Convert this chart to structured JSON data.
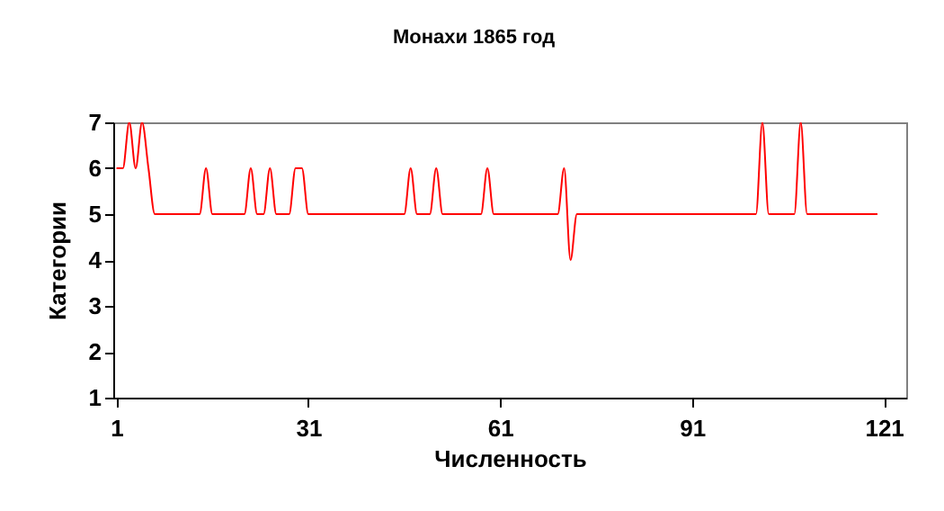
{
  "chart_data": {
    "type": "line",
    "title": "Монахи 1865 год",
    "xlabel": "Численность",
    "ylabel": "Категории",
    "x": [
      1,
      2,
      3,
      4,
      5,
      6,
      7,
      8,
      9,
      10,
      11,
      12,
      13,
      14,
      15,
      16,
      17,
      18,
      19,
      20,
      21,
      22,
      23,
      24,
      25,
      26,
      27,
      28,
      29,
      30,
      31,
      32,
      33,
      34,
      35,
      36,
      37,
      38,
      39,
      40,
      41,
      42,
      43,
      44,
      45,
      46,
      47,
      48,
      49,
      50,
      51,
      52,
      53,
      54,
      55,
      56,
      57,
      58,
      59,
      60,
      61,
      62,
      63,
      64,
      65,
      66,
      67,
      68,
      69,
      70,
      71,
      72,
      73,
      74,
      75,
      76,
      77,
      78,
      79,
      80,
      81,
      82,
      83,
      84,
      85,
      86,
      87,
      88,
      89,
      90,
      91,
      92,
      93,
      94,
      95,
      96,
      97,
      98,
      99,
      100,
      101,
      102,
      103,
      104,
      105,
      106,
      107,
      108,
      109,
      110,
      111,
      112,
      113,
      114,
      115,
      116,
      117,
      118,
      119,
      120
    ],
    "series": [
      {
        "color": "#ff0000",
        "values": [
          6,
          6,
          7,
          6,
          7,
          6,
          5,
          5,
          5,
          5,
          5,
          5,
          5,
          5,
          6,
          5,
          5,
          5,
          5,
          5,
          5,
          6,
          5,
          5,
          6,
          5,
          5,
          5,
          6,
          6,
          5,
          5,
          5,
          5,
          5,
          5,
          5,
          5,
          5,
          5,
          5,
          5,
          5,
          5,
          5,
          5,
          6,
          5,
          5,
          5,
          6,
          5,
          5,
          5,
          5,
          5,
          5,
          5,
          6,
          5,
          5,
          5,
          5,
          5,
          5,
          5,
          5,
          5,
          5,
          5,
          6,
          4,
          5,
          5,
          5,
          5,
          5,
          5,
          5,
          5,
          5,
          5,
          5,
          5,
          5,
          5,
          5,
          5,
          5,
          5,
          5,
          5,
          5,
          5,
          5,
          5,
          5,
          5,
          5,
          5,
          5,
          7,
          5,
          5,
          5,
          5,
          5,
          7,
          5,
          5,
          5,
          5,
          5,
          5,
          5,
          5,
          5,
          5,
          5,
          5
        ]
      }
    ],
    "xlim": [
      0.5,
      124.5
    ],
    "xticks": [
      1,
      31,
      61,
      91,
      121
    ],
    "ylim": [
      1,
      7
    ],
    "yticks": [
      1,
      2,
      3,
      4,
      5,
      6,
      7
    ],
    "grid": false,
    "marker": "none",
    "line_style": "solid"
  }
}
